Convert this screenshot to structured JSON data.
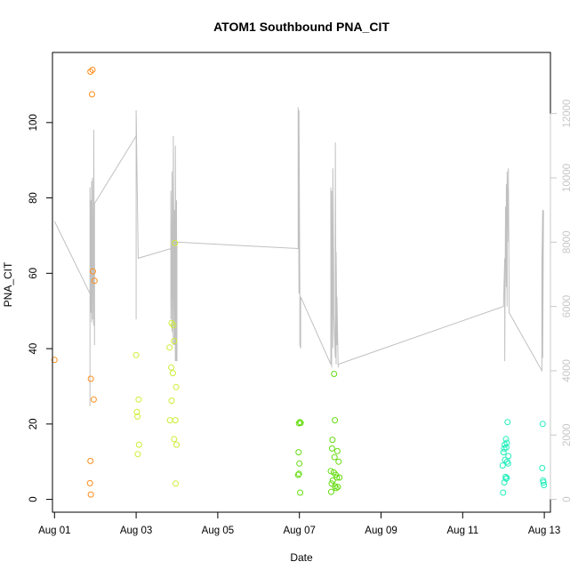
{
  "chart_data": {
    "type": "scatter",
    "title": "ATOM1 Southbound PNA_CIT",
    "xlabel": "Date",
    "ylabel": "PNA_CIT",
    "xlim": [
      -0.05,
      12.15
    ],
    "ylim": [
      -3.4,
      118.6
    ],
    "x_ticks": [
      {
        "label": "Aug 01",
        "value": 0
      },
      {
        "label": "Aug 03",
        "value": 2
      },
      {
        "label": "Aug 05",
        "value": 4
      },
      {
        "label": "Aug 07",
        "value": 6
      },
      {
        "label": "Aug 09",
        "value": 8
      },
      {
        "label": "Aug 11",
        "value": 10
      },
      {
        "label": "Aug 13",
        "value": 12
      }
    ],
    "y_ticks": [
      0,
      20,
      40,
      60,
      80,
      100
    ],
    "y2_ticks": [
      0,
      2000,
      4000,
      6000,
      8000,
      10000,
      12000
    ],
    "y2lim": [
      -400,
      13900
    ],
    "colors": {
      "axis": "#000000",
      "secondary_axis": "#c8c8c8",
      "altitude_line": "#c0c0c0",
      "series_aug01": "#ff8c1a",
      "series_aug03": "#ccee33",
      "series_aug06": "#66dd11",
      "series_aug12": "#22eebb"
    },
    "series": [
      {
        "color": "#ff8c1a",
        "points": [
          [
            0.0,
            37
          ],
          [
            0.88,
            113.5
          ],
          [
            0.93,
            114
          ],
          [
            0.92,
            107.5
          ],
          [
            0.94,
            60.5
          ],
          [
            0.98,
            58
          ],
          [
            0.89,
            32
          ],
          [
            0.96,
            26.5
          ],
          [
            0.88,
            10.2
          ],
          [
            0.87,
            4.3
          ],
          [
            0.89,
            1.3
          ]
        ]
      },
      {
        "color": "#ccee33",
        "points": [
          [
            2.0,
            38.3
          ],
          [
            2.06,
            26.5
          ],
          [
            2.02,
            23.2
          ],
          [
            2.03,
            22
          ],
          [
            2.07,
            14.5
          ],
          [
            2.04,
            12
          ],
          [
            2.82,
            40.3
          ],
          [
            2.87,
            46.8
          ],
          [
            2.91,
            46.2
          ],
          [
            2.93,
            42
          ],
          [
            2.95,
            68
          ],
          [
            2.86,
            35
          ],
          [
            2.9,
            33.5
          ],
          [
            2.98,
            29.8
          ],
          [
            2.87,
            26.2
          ],
          [
            2.83,
            21
          ],
          [
            2.96,
            21
          ],
          [
            2.93,
            16
          ],
          [
            2.99,
            14.5
          ],
          [
            2.97,
            4.2
          ]
        ]
      },
      {
        "color": "#66dd11",
        "points": [
          [
            5.99,
            20.2
          ],
          [
            6.01,
            20.5
          ],
          [
            6.03,
            20.3
          ],
          [
            5.98,
            12.5
          ],
          [
            6.0,
            9.5
          ],
          [
            5.97,
            6.5
          ],
          [
            5.99,
            6.8
          ],
          [
            6.02,
            1.8
          ],
          [
            6.85,
            33.3
          ],
          [
            6.87,
            21
          ],
          [
            6.81,
            15.8
          ],
          [
            6.8,
            13.5
          ],
          [
            6.93,
            12.8
          ],
          [
            6.86,
            11.2
          ],
          [
            6.96,
            10
          ],
          [
            6.77,
            7.5
          ],
          [
            6.84,
            7.2
          ],
          [
            6.89,
            6.5
          ],
          [
            6.92,
            5.8
          ],
          [
            6.98,
            5.8
          ],
          [
            6.82,
            5
          ],
          [
            6.79,
            4.2
          ],
          [
            6.87,
            3.5
          ],
          [
            6.94,
            3.3
          ],
          [
            6.9,
            3
          ],
          [
            6.78,
            2
          ]
        ]
      },
      {
        "color": "#22eebb",
        "points": [
          [
            11.1,
            20.5
          ],
          [
            11.06,
            16
          ],
          [
            11.08,
            15
          ],
          [
            11.03,
            14.5
          ],
          [
            11.07,
            13.8
          ],
          [
            11.02,
            13.5
          ],
          [
            11.0,
            12.5
          ],
          [
            11.12,
            11.5
          ],
          [
            11.04,
            10.5
          ],
          [
            11.09,
            10
          ],
          [
            11.11,
            9.5
          ],
          [
            10.98,
            9
          ],
          [
            11.05,
            6
          ],
          [
            11.08,
            5.7
          ],
          [
            11.06,
            5.5
          ],
          [
            11.02,
            4.5
          ],
          [
            10.99,
            1.8
          ],
          [
            11.96,
            20
          ],
          [
            11.95,
            8.3
          ],
          [
            11.97,
            5
          ],
          [
            11.98,
            4.5
          ],
          [
            11.99,
            3.8
          ]
        ]
      }
    ],
    "altitude_polyline": [
      [
        0,
        8650
      ],
      [
        0.87,
        6400
      ],
      [
        0.87,
        2900
      ],
      [
        0.87,
        9700
      ],
      [
        0.89,
        5800
      ],
      [
        0.89,
        9300
      ],
      [
        0.91,
        5500
      ],
      [
        0.91,
        9900
      ],
      [
        0.93,
        5600
      ],
      [
        0.93,
        10000
      ],
      [
        0.96,
        5400
      ],
      [
        0.96,
        11500
      ],
      [
        0.98,
        5600
      ],
      [
        0.98,
        4800
      ],
      [
        0.98,
        9200
      ],
      [
        2.0,
        11300
      ],
      [
        2.0,
        5600
      ],
      [
        2.0,
        12100
      ],
      [
        2.05,
        7500
      ],
      [
        2.85,
        7800
      ],
      [
        2.85,
        5600
      ],
      [
        2.85,
        9600
      ],
      [
        2.88,
        5200
      ],
      [
        2.88,
        10200
      ],
      [
        2.91,
        4800
      ],
      [
        2.91,
        11300
      ],
      [
        2.94,
        4800
      ],
      [
        2.94,
        9000
      ],
      [
        2.96,
        4300
      ],
      [
        2.96,
        11000
      ],
      [
        2.98,
        4300
      ],
      [
        2.98,
        8000
      ],
      [
        2.99,
        9300
      ],
      [
        3.0,
        4300
      ],
      [
        3.0,
        8000
      ],
      [
        5.97,
        7800
      ],
      [
        5.97,
        12200
      ],
      [
        5.99,
        6400
      ],
      [
        5.99,
        12100
      ],
      [
        6.01,
        6600
      ],
      [
        6.01,
        4800
      ],
      [
        6.03,
        4700
      ],
      [
        6.03,
        6300
      ],
      [
        6.77,
        4200
      ],
      [
        6.77,
        9700
      ],
      [
        6.79,
        4100
      ],
      [
        6.79,
        9600
      ],
      [
        6.82,
        4700
      ],
      [
        6.82,
        10300
      ],
      [
        6.84,
        7000
      ],
      [
        6.84,
        5800
      ],
      [
        6.88,
        4400
      ],
      [
        6.88,
        11100
      ],
      [
        6.9,
        4200
      ],
      [
        6.9,
        7700
      ],
      [
        6.92,
        4800
      ],
      [
        6.92,
        6300
      ],
      [
        6.95,
        4100
      ],
      [
        6.95,
        4200
      ],
      [
        6.95,
        4200
      ],
      [
        11.0,
        6000
      ],
      [
        11.03,
        7500
      ],
      [
        11.03,
        4300
      ],
      [
        11.05,
        9100
      ],
      [
        11.07,
        6600
      ],
      [
        11.07,
        9800
      ],
      [
        11.09,
        6000
      ],
      [
        11.09,
        10200
      ],
      [
        11.12,
        8000
      ],
      [
        11.12,
        10300
      ],
      [
        11.14,
        5900
      ],
      [
        11.14,
        5800
      ],
      [
        11.94,
        4000
      ],
      [
        11.94,
        7400
      ],
      [
        11.96,
        9000
      ],
      [
        11.96,
        4400
      ],
      [
        11.98,
        9000
      ],
      [
        11.98,
        8900
      ]
    ]
  }
}
